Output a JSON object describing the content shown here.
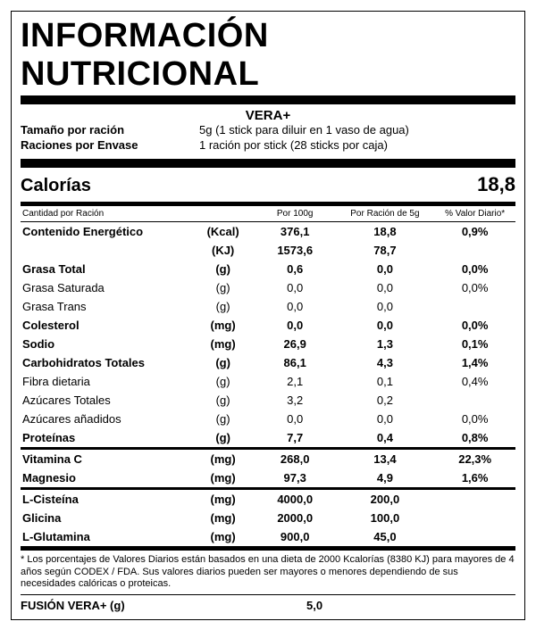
{
  "title": "INFORMACIÓN NUTRICIONAL",
  "product_name": "VERA+",
  "serving_size_label": "Tamaño por ración",
  "serving_size_value": "5g (1 stick para diluir en 1 vaso de agua)",
  "servings_label": "Raciones por Envase",
  "servings_value": "1 ración por stick (28 sticks por caja)",
  "calories_label": "Calorías",
  "calories_value": "18,8",
  "col_headers": {
    "per_ration": "Cantidad por Ración",
    "per100": "Por 100g",
    "per5": "Por Ración de 5g",
    "dv": "% Valor Diario*"
  },
  "sections": [
    {
      "rows": [
        {
          "name": "Contenido Energético",
          "unit": "(Kcal)",
          "per100": "376,1",
          "per5": "18,8",
          "dv": "0,9%",
          "bold": true,
          "indent": 0
        },
        {
          "name": "",
          "unit": "(KJ)",
          "per100": "1573,6",
          "per5": "78,7",
          "dv": "",
          "bold": true,
          "indent": 0
        },
        {
          "name": "Grasa Total",
          "unit": "(g)",
          "per100": "0,6",
          "per5": "0,0",
          "dv": "0,0%",
          "bold": true,
          "indent": 0,
          "rule": true
        },
        {
          "name": "Grasa Saturada",
          "unit": "(g)",
          "per100": "0,0",
          "per5": "0,0",
          "dv": "0,0%",
          "bold": false,
          "indent": 1
        },
        {
          "name": "Grasa Trans",
          "unit": "(g)",
          "per100": "0,0",
          "per5": "0,0",
          "dv": "",
          "bold": false,
          "indent": 1
        },
        {
          "name": "Colesterol",
          "unit": "(mg)",
          "per100": "0,0",
          "per5": "0,0",
          "dv": "0,0%",
          "bold": true,
          "indent": 0
        },
        {
          "name": "Sodio",
          "unit": "(mg)",
          "per100": "26,9",
          "per5": "1,3",
          "dv": "0,1%",
          "bold": true,
          "indent": 0
        },
        {
          "name": "Carbohidratos Totales",
          "unit": "(g)",
          "per100": "86,1",
          "per5": "4,3",
          "dv": "1,4%",
          "bold": true,
          "indent": 0
        },
        {
          "name": "Fibra dietaria",
          "unit": "(g)",
          "per100": "2,1",
          "per5": "0,1",
          "dv": "0,4%",
          "bold": false,
          "indent": 1
        },
        {
          "name": "Azúcares Totales",
          "unit": "(g)",
          "per100": "3,2",
          "per5": "0,2",
          "dv": "",
          "bold": false,
          "indent": 1
        },
        {
          "name": "Azúcares añadidos",
          "unit": "(g)",
          "per100": "0,0",
          "per5": "0,0",
          "dv": "0,0%",
          "bold": false,
          "indent": 2
        },
        {
          "name": "Proteínas",
          "unit": "(g)",
          "per100": "7,7",
          "per5": "0,4",
          "dv": "0,8%",
          "bold": true,
          "indent": 0
        }
      ]
    },
    {
      "rows": [
        {
          "name": "Vitamina C",
          "unit": "(mg)",
          "per100": "268,0",
          "per5": "13,4",
          "dv": "22,3%",
          "bold": true,
          "indent": 0
        },
        {
          "name": "Magnesio",
          "unit": "(mg)",
          "per100": "97,3",
          "per5": "4,9",
          "dv": "1,6%",
          "bold": true,
          "indent": 0
        }
      ]
    },
    {
      "rows": [
        {
          "name": "L-Cisteína",
          "unit": "(mg)",
          "per100": "4000,0",
          "per5": "200,0",
          "dv": "",
          "bold": true,
          "indent": 0
        },
        {
          "name": "Glicina",
          "unit": "(mg)",
          "per100": "2000,0",
          "per5": "100,0",
          "dv": "",
          "bold": true,
          "indent": 0
        },
        {
          "name": "L-Glutamina",
          "unit": "(mg)",
          "per100": "900,0",
          "per5": "45,0",
          "dv": "",
          "bold": true,
          "indent": 0
        }
      ]
    }
  ],
  "footnote": "* Los porcentajes de Valores Diarios están basados en una dieta de 2000 Kcalorías (8380 KJ) para mayores de 4 años según CODEX / FDA. Sus valores diarios pueden ser mayores o menores dependiendo de sus necesidades calóricas o proteicas.",
  "fusion_label": "FUSIÓN VERA+ (g)",
  "fusion_value": "5,0"
}
